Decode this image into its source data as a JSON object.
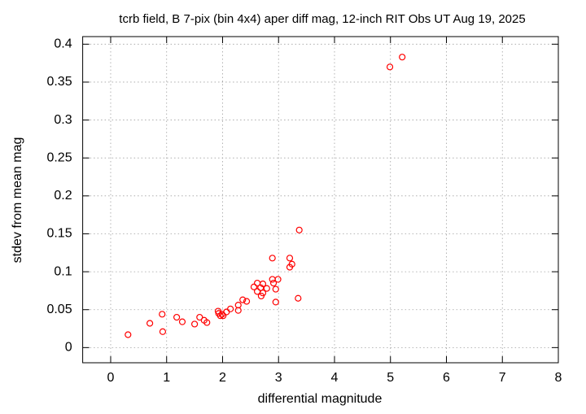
{
  "chart_data": {
    "type": "scatter",
    "title": "tcrb field, B 7-pix (bin 4x4) aper diff mag,  12-inch RIT Obs UT Aug 19, 2025",
    "x_label": "differential magnitude",
    "y_label": "stdev from mean mag",
    "color": "#ff0000",
    "grid": true,
    "xlim": [
      -0.5,
      8
    ],
    "ylim": [
      -0.02,
      0.41
    ],
    "xticks": [
      0,
      1,
      2,
      3,
      4,
      5,
      6,
      7,
      8
    ],
    "yticks": [
      0,
      0.05,
      0.1,
      0.15,
      0.2,
      0.25,
      0.3,
      0.35,
      0.4
    ],
    "x": [
      0.31,
      0.7,
      0.92,
      0.93,
      1.18,
      1.28,
      1.5,
      1.59,
      1.67,
      1.72,
      1.92,
      1.93,
      1.96,
      1.99,
      2.01,
      2.07,
      2.14,
      2.28,
      2.28,
      2.36,
      2.43,
      2.56,
      2.62,
      2.62,
      2.68,
      2.69,
      2.72,
      2.72,
      2.79,
      2.89,
      2.89,
      2.91,
      2.95,
      2.95,
      2.99,
      3.2,
      3.2,
      3.24,
      3.35,
      3.37,
      4.99,
      5.21
    ],
    "values": [
      0.017,
      0.032,
      0.044,
      0.021,
      0.04,
      0.034,
      0.031,
      0.04,
      0.036,
      0.033,
      0.048,
      0.045,
      0.042,
      0.044,
      0.042,
      0.047,
      0.051,
      0.056,
      0.049,
      0.063,
      0.061,
      0.08,
      0.085,
      0.074,
      0.079,
      0.068,
      0.072,
      0.084,
      0.078,
      0.118,
      0.09,
      0.085,
      0.077,
      0.06,
      0.09,
      0.118,
      0.106,
      0.11,
      0.065,
      0.155,
      0.37,
      0.383
    ]
  }
}
